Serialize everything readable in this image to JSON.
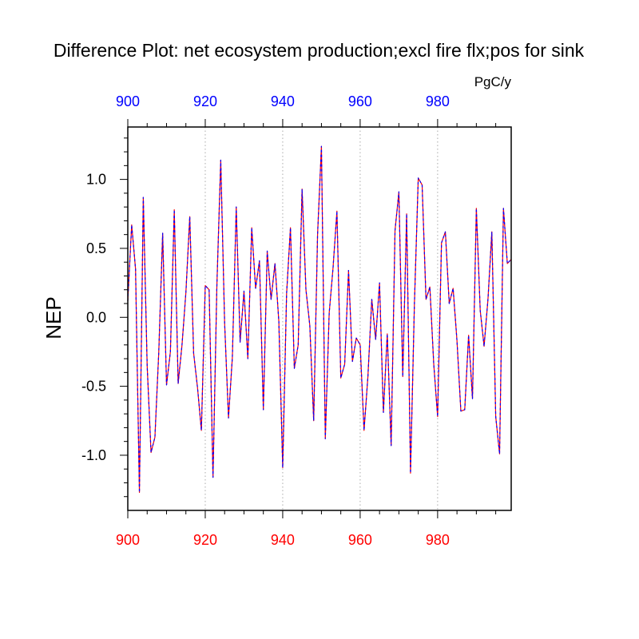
{
  "chart_data": {
    "type": "line",
    "title": "Difference Plot: net ecosystem production;excl fire flx;pos for sink",
    "ylabel": "NEP",
    "units": "PgC/y",
    "xlim": [
      900,
      999
    ],
    "ylim": [
      -1.4,
      1.38
    ],
    "x_ticks": [
      900,
      920,
      940,
      960,
      980
    ],
    "y_ticks": [
      -1.0,
      -0.5,
      0.0,
      0.5,
      1.0
    ],
    "y_tick_labels": [
      "-1.0",
      "-0.5",
      "0.0",
      "0.5",
      "1.0"
    ],
    "bottom_tick_color": "#ff0000",
    "top_tick_color": "#0000ff",
    "grid_x": true,
    "series": [
      {
        "color_primary": "#ff0000",
        "color_secondary": "#0000ff",
        "style": "dashed",
        "x_start": 900,
        "values": [
          0.12,
          0.67,
          0.35,
          -1.27,
          0.87,
          -0.35,
          -0.98,
          -0.87,
          -0.25,
          0.61,
          -0.49,
          -0.25,
          0.78,
          -0.48,
          -0.2,
          0.18,
          0.73,
          -0.26,
          -0.51,
          -0.82,
          0.23,
          0.2,
          -1.16,
          0.23,
          1.14,
          -0.04,
          -0.73,
          -0.29,
          0.8,
          -0.18,
          0.19,
          -0.3,
          0.65,
          0.21,
          0.41,
          -0.67,
          0.48,
          0.13,
          0.39,
          -0.03,
          -1.09,
          0.17,
          0.65,
          -0.37,
          -0.2,
          0.93,
          0.2,
          -0.06,
          -0.75,
          0.6,
          1.24,
          -0.88,
          0.03,
          0.36,
          0.77,
          -0.44,
          -0.34,
          0.34,
          -0.32,
          -0.15,
          -0.2,
          -0.82,
          -0.43,
          0.13,
          -0.16,
          0.25,
          -0.69,
          -0.12,
          -0.93,
          0.63,
          0.91,
          -0.43,
          0.75,
          -1.13,
          0.09,
          1.01,
          0.96,
          0.13,
          0.22,
          -0.34,
          -0.72,
          0.54,
          0.62,
          0.1,
          0.21,
          -0.17,
          -0.68,
          -0.67,
          -0.13,
          -0.59,
          0.79,
          0.05,
          -0.21,
          0.13,
          0.62,
          -0.72,
          -0.99,
          0.79,
          0.39,
          0.42
        ]
      }
    ]
  }
}
